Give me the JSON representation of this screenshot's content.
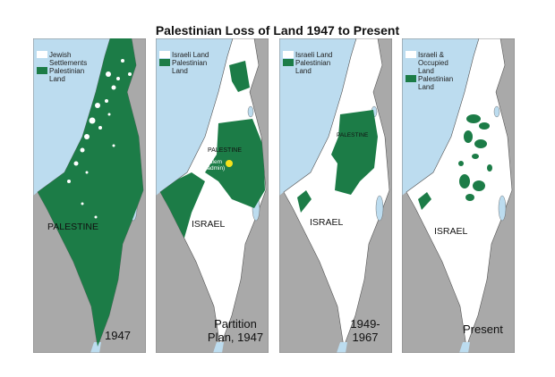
{
  "title": "Palestinian Loss of Land 1947 to Present",
  "colors": {
    "sea": "#bcdcef",
    "neighbor_land": "#a9a9a9",
    "palestinian": "#1c7c47",
    "israeli": "#ffffff",
    "marker": "#f5e21b"
  },
  "panels": [
    {
      "legend_white": "Jewish Settlements",
      "legend_green": "Palestinian Land",
      "region_label": "PALESTINE",
      "caption": "1947"
    },
    {
      "legend_white": "Israeli Land",
      "legend_green": "Palestinian Land",
      "region_label": "ISRAEL",
      "inner_label": "PALESTINE",
      "city_label": "Jerusalem (UN admin)",
      "caption": "Partition Plan, 1947"
    },
    {
      "legend_white": "Israeli Land",
      "legend_green": "Palestinian Land",
      "region_label": "ISRAEL",
      "inner_label": "PALESTINE",
      "caption": "1949-1967"
    },
    {
      "legend_white": "Israeli & Occupied Land",
      "legend_green": "Palestinian Land",
      "region_label": "ISRAEL",
      "caption": "Present"
    }
  ]
}
